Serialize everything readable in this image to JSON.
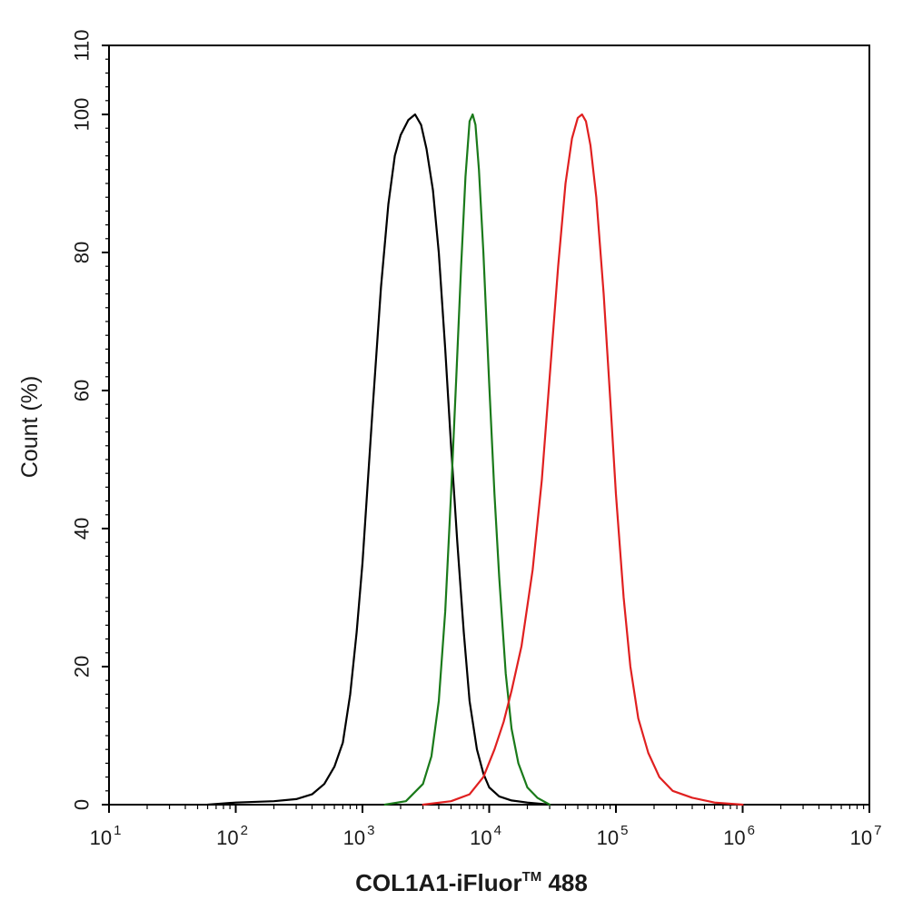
{
  "chart_data": {
    "type": "line",
    "x_scale": "log",
    "xlim": [
      10,
      10000000
    ],
    "ylim": [
      0,
      110
    ],
    "ylabel": "Count  (%)",
    "xlabel": {
      "main": "COL1A1-iFluor",
      "sup": "TM",
      "suffix": " 488"
    },
    "x_ticks": [
      {
        "base": "10",
        "exp": "1"
      },
      {
        "base": "10",
        "exp": "2"
      },
      {
        "base": "10",
        "exp": "3"
      },
      {
        "base": "10",
        "exp": "4"
      },
      {
        "base": "10",
        "exp": "5"
      },
      {
        "base": "10",
        "exp": "6"
      },
      {
        "base": "10",
        "exp": "7"
      }
    ],
    "y_ticks": [
      "0",
      "20",
      "40",
      "60",
      "80",
      "100",
      "110"
    ],
    "grid": false,
    "legend": "none",
    "series": [
      {
        "color": "#000000",
        "points": [
          [
            60,
            0
          ],
          [
            100,
            0.3
          ],
          [
            200,
            0.5
          ],
          [
            300,
            0.8
          ],
          [
            400,
            1.5
          ],
          [
            500,
            3
          ],
          [
            600,
            5.5
          ],
          [
            700,
            9
          ],
          [
            800,
            16
          ],
          [
            900,
            25
          ],
          [
            1000,
            35
          ],
          [
            1200,
            57
          ],
          [
            1400,
            75
          ],
          [
            1600,
            87
          ],
          [
            1800,
            94
          ],
          [
            2000,
            97
          ],
          [
            2300,
            99.2
          ],
          [
            2600,
            100
          ],
          [
            2900,
            98.5
          ],
          [
            3200,
            95
          ],
          [
            3600,
            89
          ],
          [
            4000,
            80
          ],
          [
            4500,
            66
          ],
          [
            5000,
            52
          ],
          [
            5600,
            38
          ],
          [
            6300,
            25
          ],
          [
            7000,
            15
          ],
          [
            8000,
            8
          ],
          [
            9000,
            4.5
          ],
          [
            10000,
            2.5
          ],
          [
            12000,
            1.2
          ],
          [
            15000,
            0.6
          ],
          [
            20000,
            0.3
          ],
          [
            30000,
            0
          ]
        ]
      },
      {
        "color": "#1a7a1a",
        "points": [
          [
            1500,
            0
          ],
          [
            2200,
            0.5
          ],
          [
            3000,
            3
          ],
          [
            3500,
            7
          ],
          [
            4000,
            15
          ],
          [
            4500,
            28
          ],
          [
            5000,
            45
          ],
          [
            5500,
            62
          ],
          [
            6000,
            78
          ],
          [
            6500,
            91
          ],
          [
            7000,
            99
          ],
          [
            7400,
            100
          ],
          [
            7800,
            98.5
          ],
          [
            8300,
            92
          ],
          [
            9000,
            80
          ],
          [
            10000,
            61
          ],
          [
            11000,
            45
          ],
          [
            12000,
            33
          ],
          [
            13500,
            19
          ],
          [
            15000,
            11
          ],
          [
            17000,
            6
          ],
          [
            20000,
            2.5
          ],
          [
            24000,
            1
          ],
          [
            30000,
            0
          ]
        ]
      },
      {
        "color": "#e02020",
        "points": [
          [
            3000,
            0
          ],
          [
            5000,
            0.5
          ],
          [
            7000,
            1.5
          ],
          [
            9000,
            4
          ],
          [
            11000,
            8
          ],
          [
            13000,
            12
          ],
          [
            15000,
            16.5
          ],
          [
            18000,
            23
          ],
          [
            22000,
            34
          ],
          [
            26000,
            47
          ],
          [
            30000,
            62
          ],
          [
            35000,
            78
          ],
          [
            40000,
            90
          ],
          [
            45000,
            96.5
          ],
          [
            50000,
            99.5
          ],
          [
            54000,
            100
          ],
          [
            58000,
            99
          ],
          [
            63000,
            95.5
          ],
          [
            70000,
            88
          ],
          [
            80000,
            74
          ],
          [
            90000,
            59
          ],
          [
            100000,
            45
          ],
          [
            115000,
            30
          ],
          [
            130000,
            20
          ],
          [
            150000,
            12.5
          ],
          [
            180000,
            7.5
          ],
          [
            220000,
            4
          ],
          [
            280000,
            2
          ],
          [
            400000,
            1
          ],
          [
            600000,
            0.3
          ],
          [
            1000000,
            0
          ]
        ]
      }
    ]
  }
}
